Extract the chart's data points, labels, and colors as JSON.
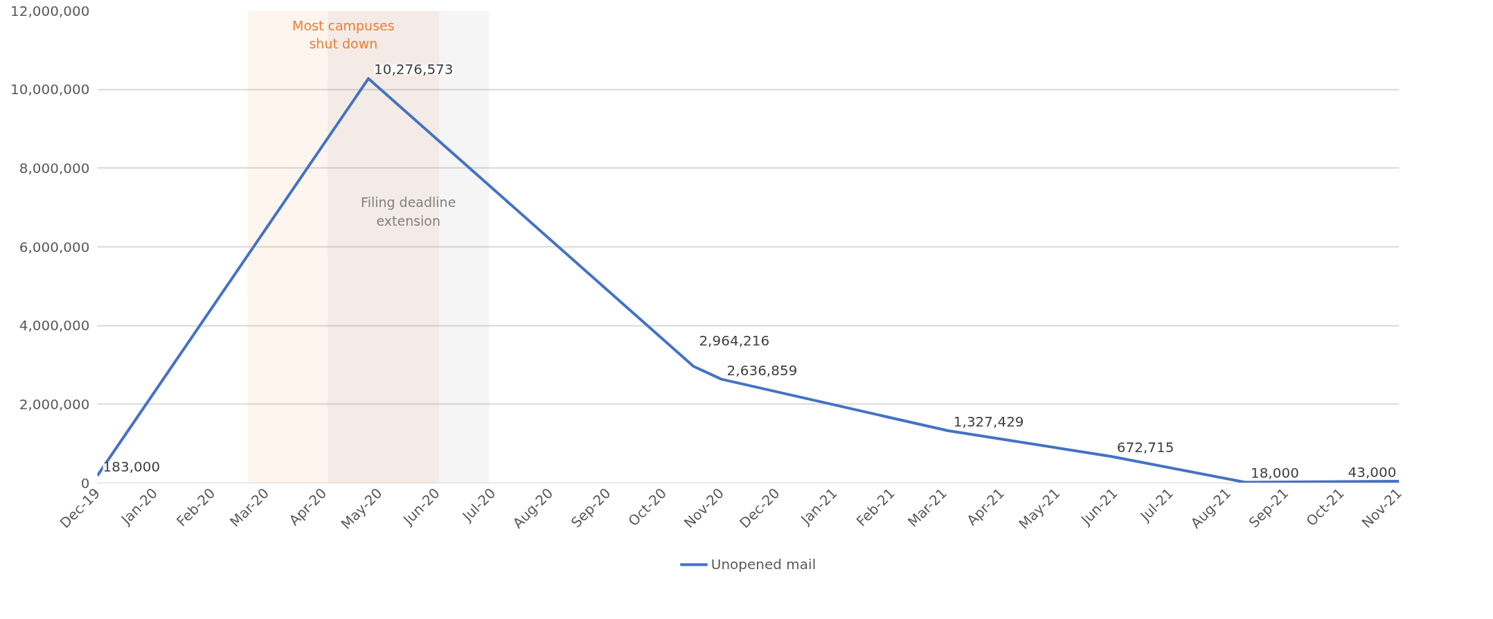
{
  "chart_data": {
    "type": "line",
    "x": [
      "2019-12-01",
      "2020-04-25",
      "2020-10-17",
      "2020-11-01",
      "2021-03-03",
      "2021-05-30",
      "2021-08-10",
      "2021-11-01"
    ],
    "series": [
      {
        "name": "Unopened mail",
        "color": "#4472c4",
        "values": [
          183000,
          10276573,
          2964216,
          2636859,
          1327429,
          672715,
          18000,
          43000
        ]
      }
    ],
    "value_labels": [
      "183,000",
      "10,276,573",
      "2,964,216",
      "2,636,859",
      "1,327,429",
      "672,715",
      "18,000",
      "43,000"
    ],
    "xlim": [
      "2019-12-01",
      "2021-11-01"
    ],
    "xticks": [
      {
        "value": "2019-12-01",
        "label": "Dec-19"
      },
      {
        "value": "2020-01-01",
        "label": "Jan-20"
      },
      {
        "value": "2020-02-01",
        "label": "Feb-20"
      },
      {
        "value": "2020-03-01",
        "label": "Mar-20"
      },
      {
        "value": "2020-04-01",
        "label": "Apr-20"
      },
      {
        "value": "2020-05-01",
        "label": "May-20"
      },
      {
        "value": "2020-06-01",
        "label": "Jun-20"
      },
      {
        "value": "2020-07-01",
        "label": "Jul-20"
      },
      {
        "value": "2020-08-01",
        "label": "Aug-20"
      },
      {
        "value": "2020-09-01",
        "label": "Sep-20"
      },
      {
        "value": "2020-10-01",
        "label": "Oct-20"
      },
      {
        "value": "2020-11-01",
        "label": "Nov-20"
      },
      {
        "value": "2020-12-01",
        "label": "Dec-20"
      },
      {
        "value": "2021-01-01",
        "label": "Jan-21"
      },
      {
        "value": "2021-02-01",
        "label": "Feb-21"
      },
      {
        "value": "2021-03-01",
        "label": "Mar-21"
      },
      {
        "value": "2021-04-01",
        "label": "Apr-21"
      },
      {
        "value": "2021-05-01",
        "label": "May-21"
      },
      {
        "value": "2021-06-01",
        "label": "Jun-21"
      },
      {
        "value": "2021-07-01",
        "label": "Jul-21"
      },
      {
        "value": "2021-08-01",
        "label": "Aug-21"
      },
      {
        "value": "2021-09-01",
        "label": "Sep-21"
      },
      {
        "value": "2021-10-01",
        "label": "Oct-21"
      },
      {
        "value": "2021-11-01",
        "label": "Nov-21"
      }
    ],
    "ylim": [
      0,
      12000000
    ],
    "yticks": [
      {
        "value": 0,
        "label": "0"
      },
      {
        "value": 2000000,
        "label": "2,000,000"
      },
      {
        "value": 4000000,
        "label": "4,000,000"
      },
      {
        "value": 6000000,
        "label": "6,000,000"
      },
      {
        "value": 8000000,
        "label": "8,000,000"
      },
      {
        "value": 10000000,
        "label": "10,000,000"
      },
      {
        "value": 12000000,
        "label": "12,000,000"
      }
    ],
    "bands": [
      {
        "axis": "x",
        "from": "2020-02-20",
        "to": "2020-06-02",
        "label": "Most campuses shut down",
        "color": "#ed7d31"
      },
      {
        "axis": "x",
        "from": "2020-04-03",
        "to": "2020-06-29",
        "label": "Filing deadline extension",
        "color": "#808080"
      }
    ],
    "grid": "y",
    "legend": "bottom",
    "marker": "none",
    "line_style": "solid"
  }
}
